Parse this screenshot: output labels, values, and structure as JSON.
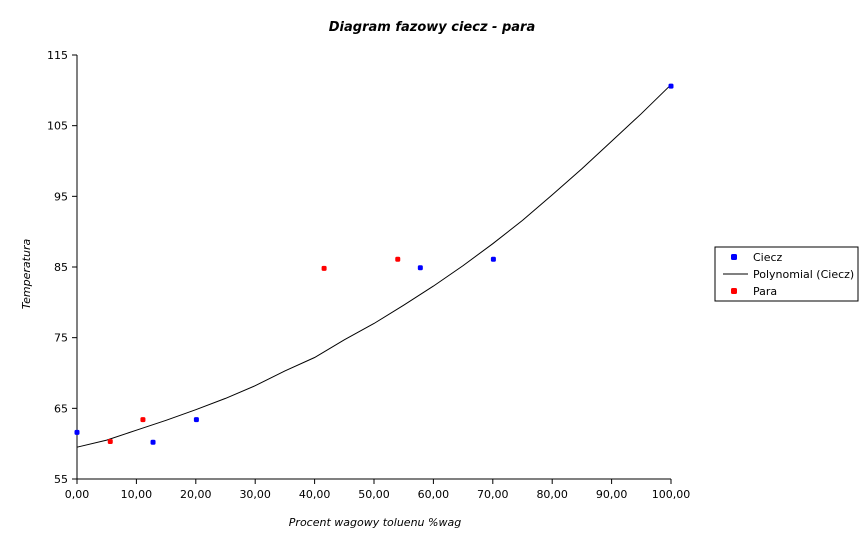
{
  "chart_data": {
    "type": "scatter",
    "title": "Diagram fazowy ciecz - para",
    "xlabel": "Procent wagowy toluenu %wag",
    "ylabel": "Temperatura",
    "xlim": [
      0,
      100
    ],
    "ylim": [
      55,
      115
    ],
    "x_ticks": [
      0,
      10,
      20,
      30,
      40,
      50,
      60,
      70,
      80,
      90,
      100
    ],
    "x_tick_labels": [
      "0,00",
      "10,00",
      "20,00",
      "30,00",
      "40,00",
      "50,00",
      "60,00",
      "70,00",
      "80,00",
      "90,00",
      "100,00"
    ],
    "y_ticks": [
      55,
      65,
      75,
      85,
      95,
      105,
      115
    ],
    "y_tick_labels": [
      "55",
      "65",
      "75",
      "85",
      "95",
      "105",
      "115"
    ],
    "grid": false,
    "legend_position": "right",
    "series": [
      {
        "name": "Ciecz",
        "kind": "scatter",
        "color": "#0000ff",
        "x": [
          0,
          12.8,
          20.1,
          57.8,
          70.1,
          100
        ],
        "y": [
          61.6,
          60.2,
          63.4,
          84.9,
          86.1,
          110.6
        ]
      },
      {
        "name": "Polynomial (Ciecz)",
        "kind": "trendline",
        "color": "#000000",
        "x": [
          0,
          5,
          10,
          15,
          20,
          25,
          30,
          35,
          40,
          45,
          50,
          55,
          60,
          65,
          70,
          75,
          80,
          85,
          90,
          95,
          100
        ],
        "y": [
          59.5,
          60.5,
          61.9,
          63.3,
          64.8,
          66.4,
          68.2,
          70.3,
          72.2,
          74.7,
          77.0,
          79.6,
          82.3,
          85.2,
          88.3,
          91.6,
          95.2,
          98.9,
          102.8,
          106.7,
          110.8
        ]
      },
      {
        "name": "Para",
        "kind": "scatter",
        "color": "#ff0000",
        "x": [
          5.6,
          11.1,
          41.6,
          54.0
        ],
        "y": [
          60.3,
          63.4,
          84.8,
          86.1
        ]
      }
    ]
  }
}
